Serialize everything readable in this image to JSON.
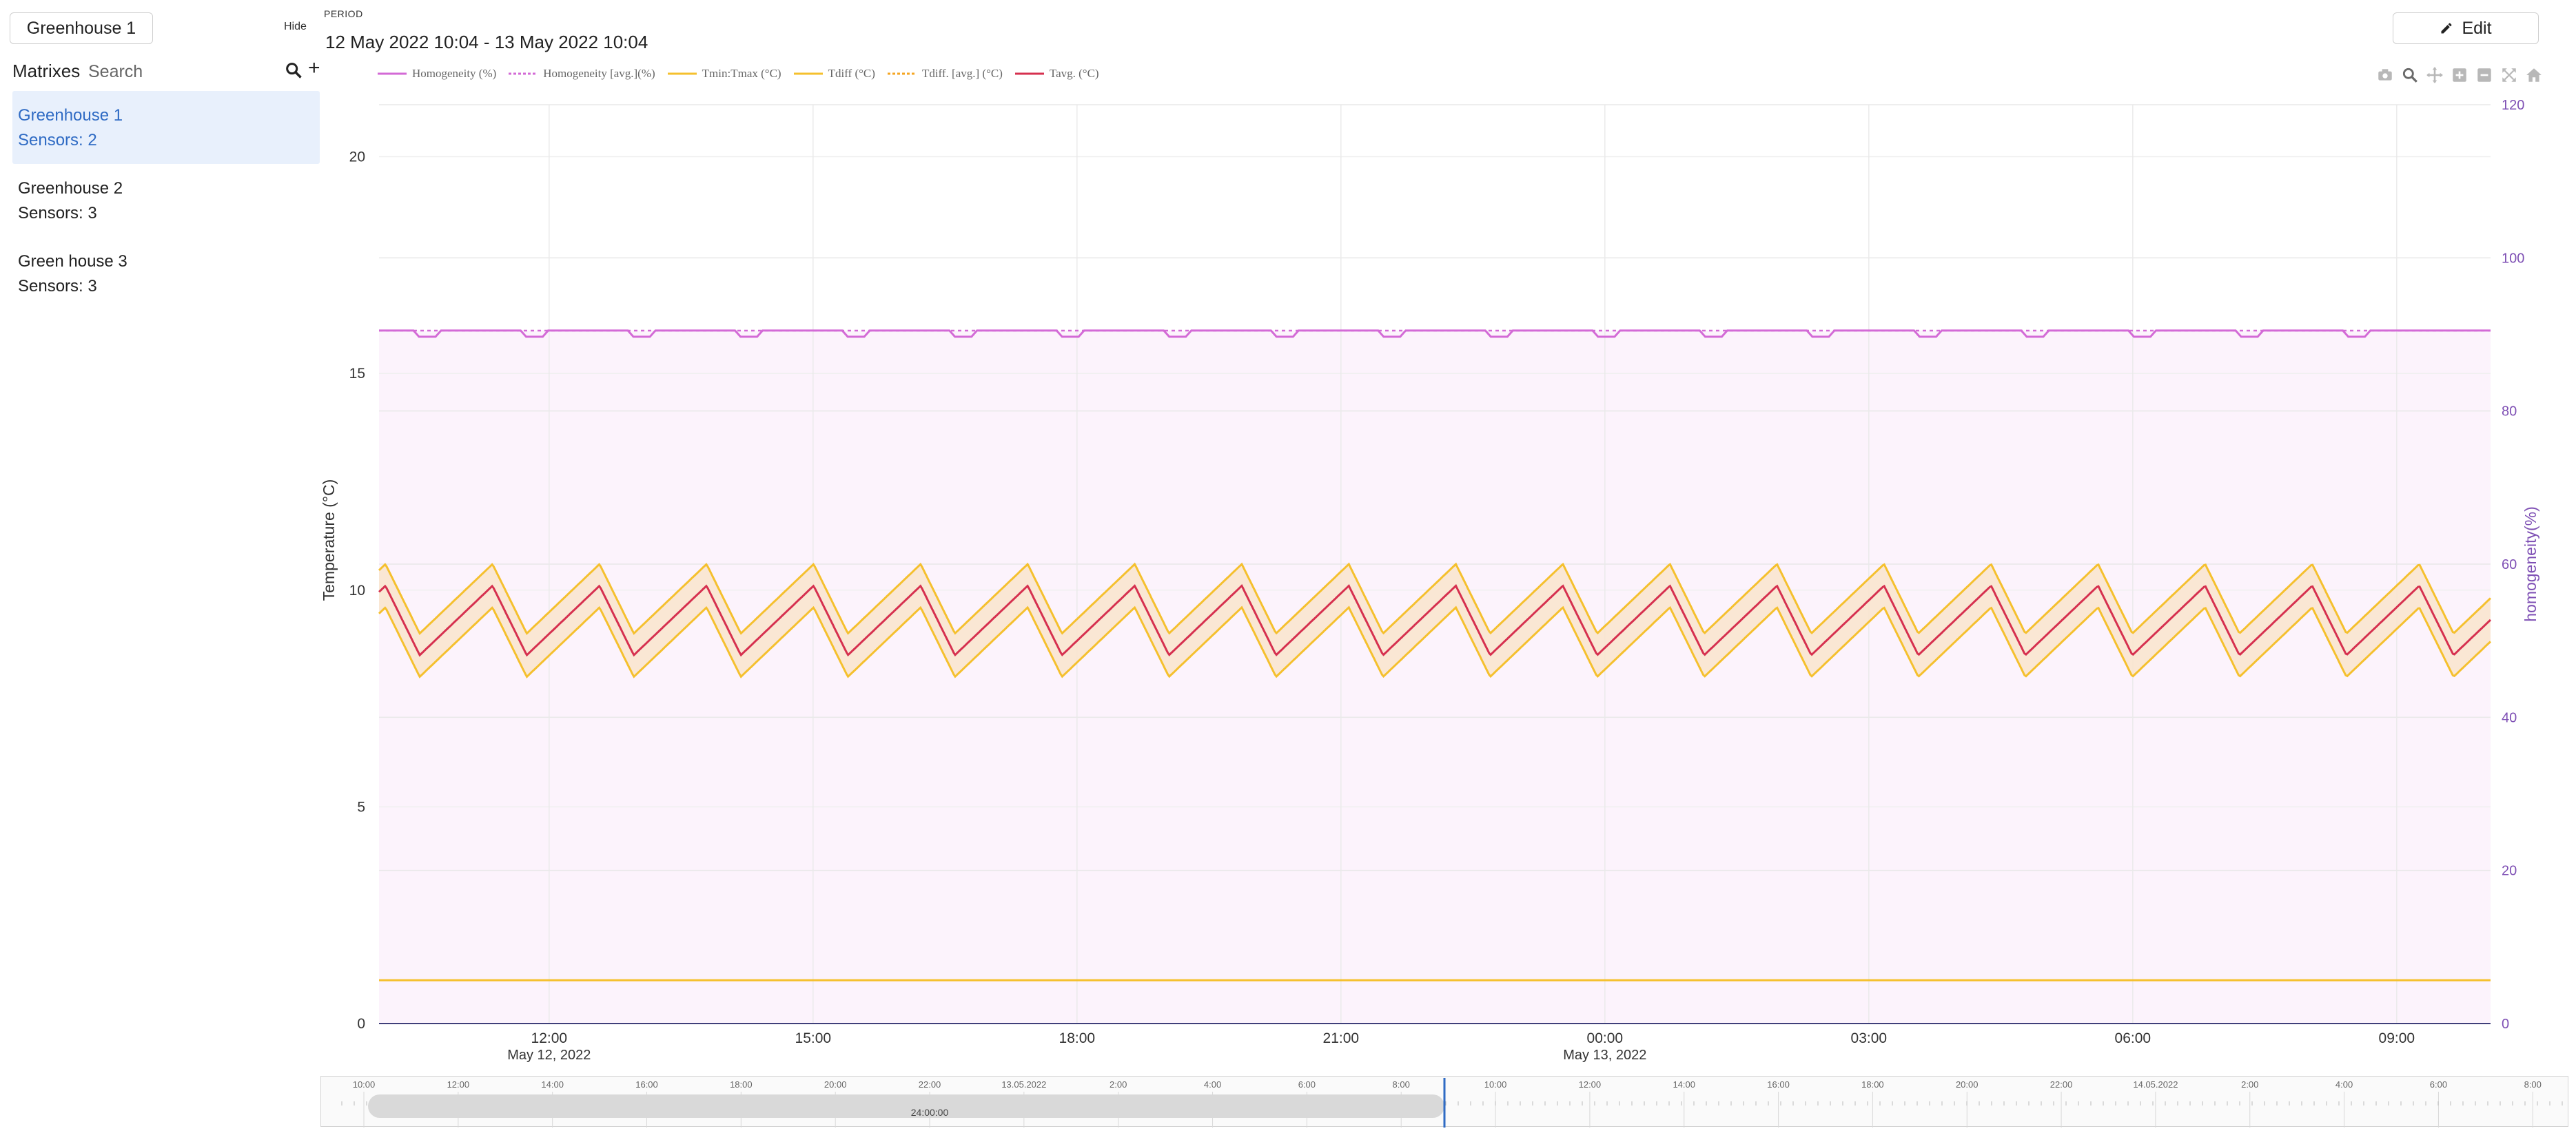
{
  "sidebar": {
    "selected_greenhouse": "Greenhouse 1",
    "hide_label": "Hide",
    "matrixes_label": "Matrixes",
    "search_placeholder": "Search",
    "items": [
      {
        "name": "Greenhouse 1",
        "sensors": "Sensors: 2",
        "active": true
      },
      {
        "name": "Greenhouse 2",
        "sensors": "Sensors: 3",
        "active": false
      },
      {
        "name": "Green house 3",
        "sensors": "Sensors: 3",
        "active": false
      }
    ]
  },
  "header": {
    "period_label": "PERIOD",
    "period_value": "12 May 2022  10:04 - 13 May 2022  10:04",
    "edit_label": "Edit"
  },
  "legend": [
    {
      "label": "Homogeneity (%)",
      "color": "#d36ad6",
      "dash": "solid"
    },
    {
      "label": "Homogeneity [avg.](%)",
      "color": "#d36ad6",
      "dash": "dot"
    },
    {
      "label": "Tmin:Tmax (°C)",
      "color": "#f5c02e",
      "dash": "solid"
    },
    {
      "label": "Tdiff (°C)",
      "color": "#f5c02e",
      "dash": "solid"
    },
    {
      "label": "Tdiff. [avg.] (°C)",
      "color": "#f5a623",
      "dash": "dot"
    },
    {
      "label": "Tavg. (°C)",
      "color": "#d6304f",
      "dash": "solid"
    }
  ],
  "modebar": [
    "camera-icon",
    "zoom-icon",
    "pan-icon",
    "zoom-in-icon",
    "zoom-out-icon",
    "autoscale-icon",
    "home-icon"
  ],
  "chart_data": {
    "type": "line",
    "ylabel": "Temperature (°C)",
    "y2label": "homogeneity(%)",
    "ylim": [
      0,
      21.2
    ],
    "y2lim": [
      0,
      120
    ],
    "yticks": [
      "0",
      "5",
      "10",
      "15",
      "20"
    ],
    "y2ticks": [
      "0",
      "20",
      "40",
      "60",
      "80",
      "100",
      "120"
    ],
    "xlim": [
      "2022-05-12 10:04",
      "2022-05-13 10:04"
    ],
    "xticks": [
      {
        "at": "2022-05-12 12:00",
        "label": "12:00",
        "sub": "May 12, 2022"
      },
      {
        "at": "2022-05-12 15:00",
        "label": "15:00",
        "sub": ""
      },
      {
        "at": "2022-05-12 18:00",
        "label": "18:00",
        "sub": ""
      },
      {
        "at": "2022-05-12 21:00",
        "label": "21:00",
        "sub": ""
      },
      {
        "at": "2022-05-13 00:00",
        "label": "00:00",
        "sub": "May 13, 2022"
      },
      {
        "at": "2022-05-13 03:00",
        "label": "03:00",
        "sub": ""
      },
      {
        "at": "2022-05-13 06:00",
        "label": "06:00",
        "sub": ""
      },
      {
        "at": "2022-05-13 09:00",
        "label": "09:00",
        "sub": ""
      }
    ],
    "grid": true,
    "colors": {
      "homogeneity": "#d36ad6",
      "tmax_tmin": "#f5c02e",
      "band_fill": "#f9e6cf",
      "tavg": "#d6304f",
      "tdiff": "#f5c02e",
      "homogeneity_area": "#fcf3fc",
      "y2_axis": "#7e4fb4"
    },
    "series": [
      {
        "name": "Tavg. (°C)",
        "cycle_period_min": 73,
        "range": [
          8.5,
          10.1
        ]
      },
      {
        "name": "Tmin:Tmax (°C)",
        "upper": [
          9.0,
          10.6
        ],
        "lower": [
          8.0,
          9.6
        ]
      },
      {
        "name": "Tdiff (°C)",
        "value": 1.0
      },
      {
        "name": "Homogeneity (%)",
        "value": 90.5
      },
      {
        "name": "Homogeneity [avg.](%)",
        "value": 90.5
      }
    ]
  },
  "timeline": {
    "labels": [
      "10:00",
      "12:00",
      "14:00",
      "16:00",
      "18:00",
      "20:00",
      "22:00",
      "13.05.2022",
      "2:00",
      "4:00",
      "6:00",
      "8:00",
      "10:00",
      "12:00",
      "14:00",
      "16:00",
      "18:00",
      "20:00",
      "22:00",
      "14.05.2022",
      "2:00",
      "4:00",
      "6:00",
      "8:00"
    ],
    "window_label": "24:00:00"
  }
}
